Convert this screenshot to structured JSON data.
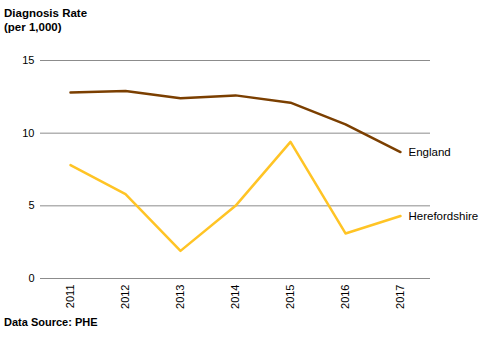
{
  "chart_data": {
    "type": "line",
    "title": "Diagnosis Rate",
    "subtitle": "(per 1,000)",
    "caption": "Data Source: PHE",
    "categories": [
      "2011",
      "2012",
      "2013",
      "2014",
      "2015",
      "2016",
      "2017"
    ],
    "series": [
      {
        "name": "England",
        "color": "#7b3f00",
        "values": [
          12.8,
          12.9,
          12.4,
          12.6,
          12.1,
          10.6,
          8.7
        ]
      },
      {
        "name": "Herefordshire",
        "color": "#ffc425",
        "values": [
          7.8,
          5.8,
          1.9,
          5.0,
          9.4,
          3.1,
          4.3
        ]
      }
    ],
    "ylim": [
      0,
      15
    ],
    "yticks": [
      0,
      5,
      10,
      15
    ],
    "grid": true
  }
}
